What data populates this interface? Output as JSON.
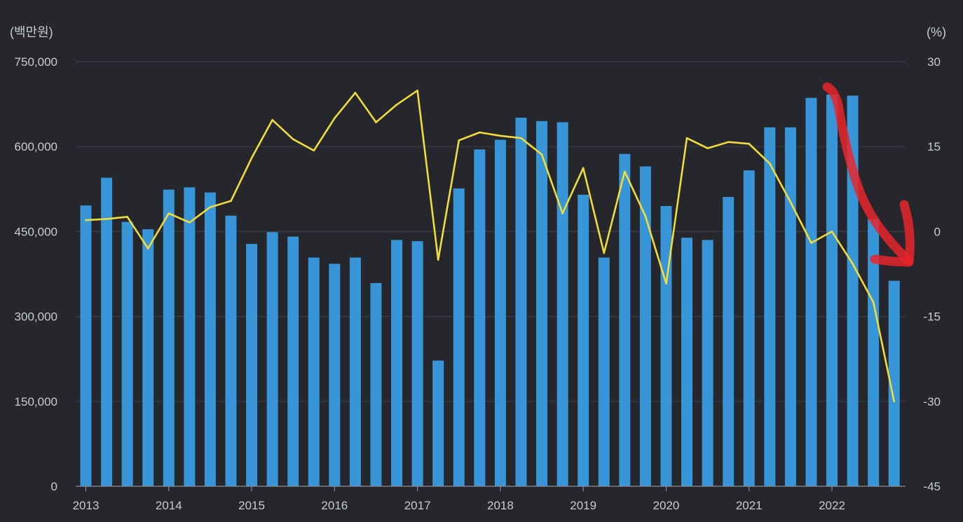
{
  "chart_data": {
    "type": "bar+line",
    "left_unit": "(백만원)",
    "right_unit": "(%)",
    "y_left": {
      "min": 0,
      "max": 750000,
      "ticks": [
        0,
        150000,
        300000,
        450000,
        600000,
        750000
      ],
      "tick_labels": [
        "0",
        "150,000",
        "300,000",
        "450,000",
        "600,000",
        "750,000"
      ]
    },
    "y_right": {
      "min": -45,
      "max": 30,
      "ticks": [
        -45,
        -30,
        -15,
        0,
        15,
        30
      ],
      "tick_labels": [
        "-45",
        "-30",
        "-15",
        "0",
        "15",
        "30"
      ]
    },
    "x_year_labels": [
      "2013",
      "2014",
      "2015",
      "2016",
      "2017",
      "2018",
      "2019",
      "2020",
      "2021",
      "2022"
    ],
    "quarters_per_year": 4,
    "grid": true,
    "series": [
      {
        "kind": "bar",
        "color": "#3795d8",
        "values": [
          496000,
          545000,
          467000,
          454000,
          524000,
          528000,
          519000,
          478000,
          428000,
          449000,
          441000,
          404000,
          393000,
          404000,
          359000,
          435000,
          433000,
          222000,
          526000,
          595000,
          612000,
          651000,
          645000,
          643000,
          515000,
          404000,
          587000,
          565000,
          495000,
          439000,
          435000,
          511000,
          558000,
          634000,
          634000,
          686000,
          692000,
          690000,
          472000,
          363000
        ]
      },
      {
        "kind": "line",
        "color": "#f0dc3c",
        "values": [
          2,
          2.2,
          2.6,
          -3,
          3.2,
          1.6,
          4.3,
          5.4,
          13,
          19.7,
          16.3,
          14.3,
          20,
          24.5,
          19.3,
          22.4,
          24.9,
          -5,
          16.1,
          17.5,
          16.9,
          16.5,
          13.6,
          3.2,
          11.2,
          -3.8,
          10.6,
          2.7,
          -9.2,
          16.5,
          14.7,
          15.8,
          15.5,
          12,
          5.2,
          -2,
          0,
          -5.7,
          -12.5,
          -30
        ]
      }
    ],
    "annotation": {
      "kind": "hand-drawn arrow",
      "color": "#e8262b"
    }
  }
}
